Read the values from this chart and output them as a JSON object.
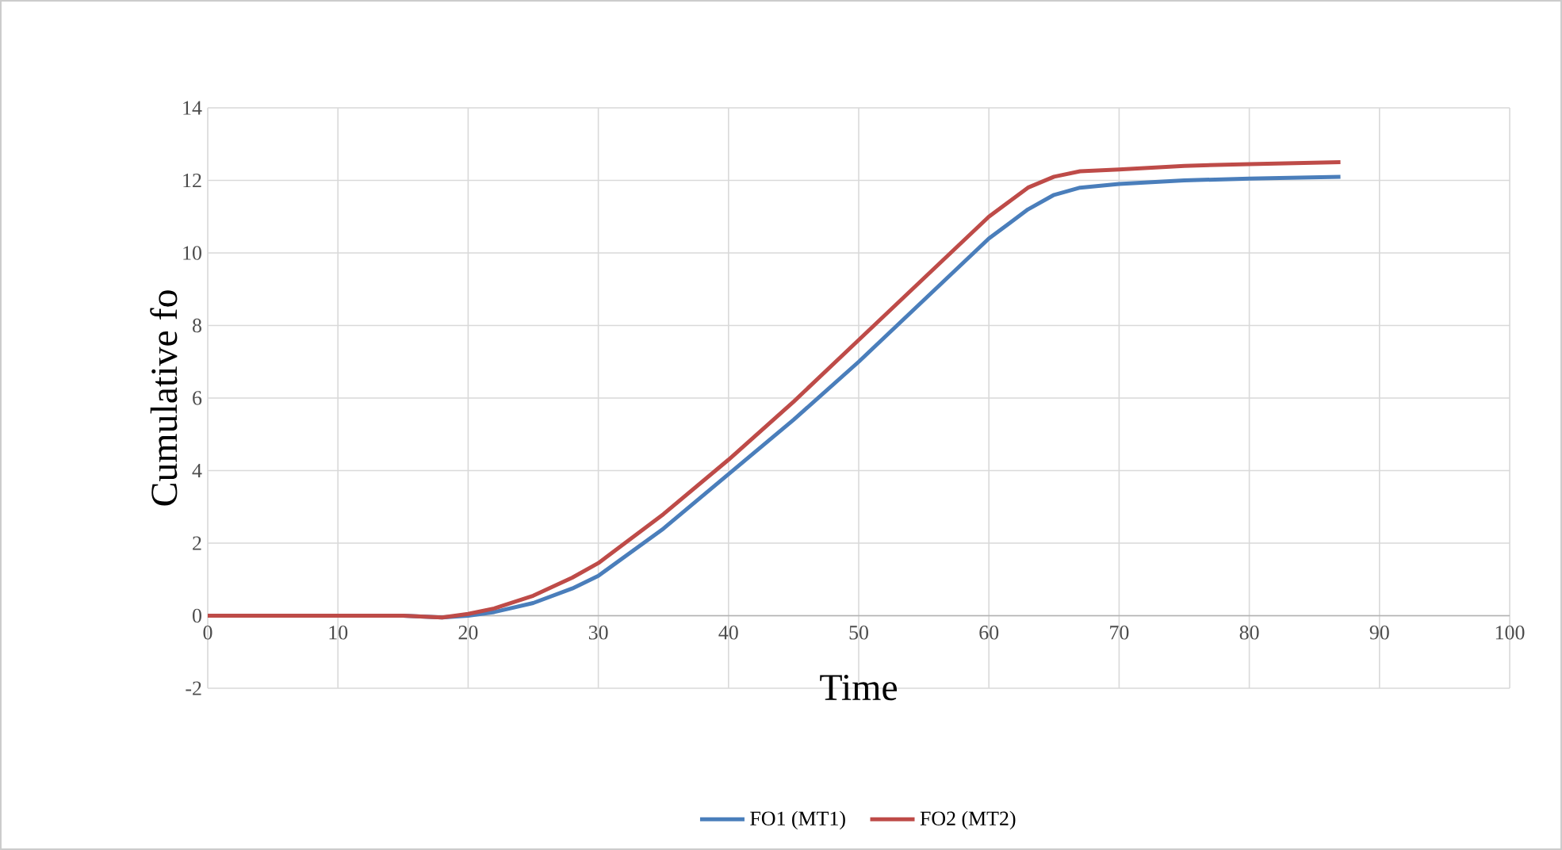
{
  "chart_data": {
    "type": "line",
    "xlabel": "Time",
    "ylabel": "Cumulative fo",
    "xlim": [
      0,
      100
    ],
    "ylim": [
      -2,
      14
    ],
    "xticks": [
      0,
      10,
      20,
      30,
      40,
      50,
      60,
      70,
      80,
      90,
      100
    ],
    "yticks": [
      -2,
      0,
      2,
      4,
      6,
      8,
      10,
      12,
      14
    ],
    "grid": true,
    "legend": "bottom",
    "marker": "none",
    "line_style": "solid",
    "series": [
      {
        "name": "FO1 (MT1)",
        "color": "#4a7ebb",
        "x": [
          15,
          18,
          20,
          22,
          25,
          28,
          30,
          35,
          40,
          45,
          50,
          55,
          60,
          63,
          65,
          67,
          70,
          75,
          80,
          87
        ],
        "values": [
          0,
          -0.05,
          0,
          0.1,
          0.35,
          0.75,
          1.1,
          2.4,
          3.9,
          5.4,
          7.0,
          8.7,
          10.4,
          11.2,
          11.6,
          11.8,
          11.9,
          12.0,
          12.05,
          12.1
        ]
      },
      {
        "name": "FO2 (MT2)",
        "color": "#be4b48",
        "x": [
          0,
          5,
          10,
          15,
          18,
          20,
          22,
          25,
          28,
          30,
          35,
          40,
          45,
          50,
          55,
          60,
          63,
          65,
          67,
          70,
          75,
          80,
          87
        ],
        "values": [
          0,
          0,
          0,
          0,
          -0.05,
          0.05,
          0.2,
          0.55,
          1.05,
          1.45,
          2.8,
          4.3,
          5.9,
          7.6,
          9.3,
          11.0,
          11.8,
          12.1,
          12.25,
          12.3,
          12.4,
          12.45,
          12.5
        ]
      }
    ]
  }
}
